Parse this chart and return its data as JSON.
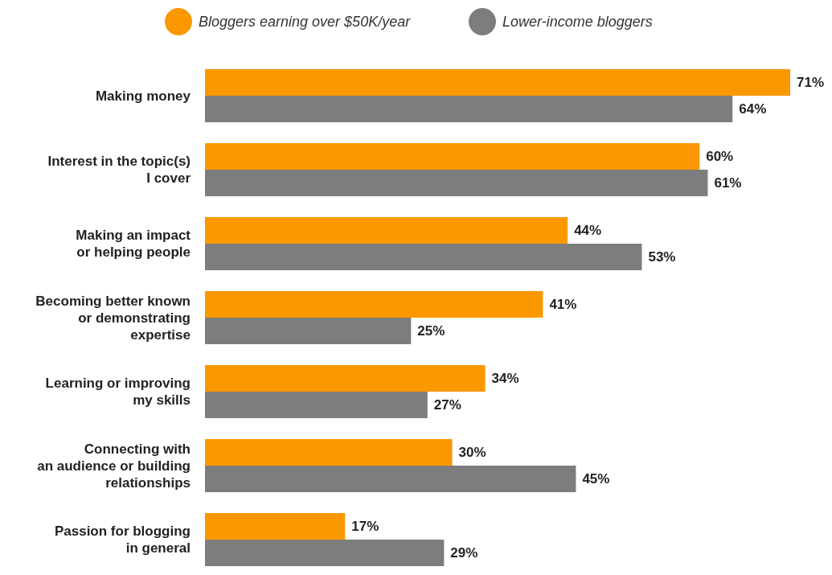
{
  "chart_data": {
    "type": "bar",
    "orientation": "horizontal",
    "legend": "top",
    "categories": [
      "Making money",
      "Interest in the topic(s)\nI cover",
      "Making an impact\nor helping people",
      "Becoming better known\nor demonstrating\nexpertise",
      "Learning or improving\nmy skills",
      "Connecting with\nan audience or building\nrelationships",
      "Passion for blogging\nin general"
    ],
    "series": [
      {
        "name": "Bloggers earning over $50K/year",
        "color": "#fb9800",
        "values": [
          71,
          60,
          44,
          41,
          34,
          30,
          17
        ],
        "value_labels": [
          "71%",
          "60%",
          "44%",
          "41%",
          "34%",
          "30%",
          "17%"
        ]
      },
      {
        "name": "Lower-income bloggers",
        "color": "#7d7d7d",
        "values": [
          64,
          61,
          53,
          25,
          27,
          45,
          29
        ],
        "value_labels": [
          "64%",
          "61%",
          "53%",
          "25%",
          "27%",
          "45%",
          "29%"
        ]
      }
    ]
  }
}
